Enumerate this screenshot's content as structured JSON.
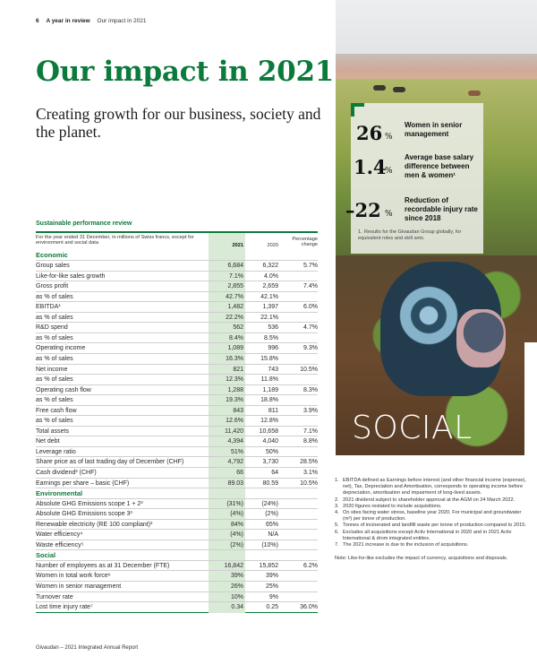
{
  "running_head": {
    "page_number": "6",
    "section": "A year in review",
    "subsection": "Our impact in 2021"
  },
  "title": "Our impact in 2021",
  "subtitle": "Creating growth for our business, society and the planet.",
  "colors": {
    "brand_green": "#0b7a3b",
    "highlight_column": "#d9ead6"
  },
  "highlights": [
    {
      "value": "26",
      "unit": "%",
      "label": "Women in senior management"
    },
    {
      "value": "1.4",
      "unit": "%",
      "label": "Average base salary difference between men & women¹"
    },
    {
      "value": "–22",
      "unit": "%",
      "label": "Reduction of recordable injury rate since 2018"
    }
  ],
  "highlights_note": {
    "num": "1.",
    "text": "Results for the Givaudan Group globally, for equivalent roles and skill sets."
  },
  "photo_caption": "SOCIAL",
  "table": {
    "title": "Sustainable performance review",
    "caption": "For the year ended 31 December, in millions of Swiss francs, except for environment and social data",
    "columns": {
      "y2021": "2021",
      "y2020": "2020",
      "change": "Percentage change"
    },
    "rows": [
      {
        "label": "Economic",
        "category": true
      },
      {
        "label": "Group sales",
        "v2021": "6,684",
        "v2020": "6,322",
        "change": "5.7%"
      },
      {
        "label": "Like-for-like sales growth",
        "v2021": "7.1%",
        "v2020": "4.0%",
        "change": ""
      },
      {
        "label": "Gross profit",
        "v2021": "2,855",
        "v2020": "2,659",
        "change": "7.4%"
      },
      {
        "label": "as % of sales",
        "v2021": "42.7%",
        "v2020": "42.1%",
        "change": ""
      },
      {
        "label": "EBITDA¹",
        "v2021": "1,482",
        "v2020": "1,397",
        "change": "6.0%"
      },
      {
        "label": "as % of sales",
        "v2021": "22.2%",
        "v2020": "22.1%",
        "change": ""
      },
      {
        "label": "R&D spend",
        "v2021": "562",
        "v2020": "536",
        "change": "4.7%"
      },
      {
        "label": "as % of sales",
        "v2021": "8.4%",
        "v2020": "8.5%",
        "change": ""
      },
      {
        "label": "Operating income",
        "v2021": "1,089",
        "v2020": "996",
        "change": "9.3%"
      },
      {
        "label": "as % of sales",
        "v2021": "16.3%",
        "v2020": "15.8%",
        "change": ""
      },
      {
        "label": "Net income",
        "v2021": "821",
        "v2020": "743",
        "change": "10.5%"
      },
      {
        "label": "as % of sales",
        "v2021": "12.3%",
        "v2020": "11.8%",
        "change": ""
      },
      {
        "label": "Operating cash flow",
        "v2021": "1,288",
        "v2020": "1,189",
        "change": "8.3%"
      },
      {
        "label": "as % of sales",
        "v2021": "19.3%",
        "v2020": "18.8%",
        "change": ""
      },
      {
        "label": "Free cash flow",
        "v2021": "843",
        "v2020": "811",
        "change": "3.9%"
      },
      {
        "label": "as % of sales",
        "v2021": "12.6%",
        "v2020": "12.8%",
        "change": ""
      },
      {
        "label": "Total assets",
        "v2021": "11,420",
        "v2020": "10,658",
        "change": "7.1%"
      },
      {
        "label": "Net debt",
        "v2021": "4,394",
        "v2020": "4,040",
        "change": "8.8%"
      },
      {
        "label": "Leverage ratio",
        "v2021": "51%",
        "v2020": "50%",
        "change": ""
      },
      {
        "label": "Share price as of last trading day of December (CHF)",
        "v2021": "4,792",
        "v2020": "3,730",
        "change": "28.5%"
      },
      {
        "label": "Cash dividend² (CHF)",
        "v2021": "66",
        "v2020": "64",
        "change": "3.1%"
      },
      {
        "label": "Earnings per share – basic (CHF)",
        "v2021": "89.03",
        "v2020": "80.59",
        "change": "10.5%"
      },
      {
        "label": "Environmental",
        "category": true
      },
      {
        "label": "Absolute GHG Emissions scope 1 + 2³",
        "v2021": "(31%)",
        "v2020": "(24%)",
        "change": ""
      },
      {
        "label": "Absolute GHG Emissions scope 3³",
        "v2021": "(4%)",
        "v2020": "(2%)",
        "change": ""
      },
      {
        "label": "Renewable electricity (RE 100 compliant)³",
        "v2021": "84%",
        "v2020": "65%",
        "change": ""
      },
      {
        "label": "Water efficiency⁴",
        "v2021": "(4%)",
        "v2020": "N/A",
        "change": ""
      },
      {
        "label": "Waste efficiency⁵",
        "v2021": "(2%)",
        "v2020": "(10%)",
        "change": ""
      },
      {
        "label": "Social",
        "category": true
      },
      {
        "label": "Number of employees as at 31 December (FTE)",
        "v2021": "16,842",
        "v2020": "15,852",
        "change": "6.2%"
      },
      {
        "label": "Women in total work force⁶",
        "v2021": "39%",
        "v2020": "39%",
        "change": ""
      },
      {
        "label": "Women in senior management",
        "v2021": "26%",
        "v2020": "25%",
        "change": ""
      },
      {
        "label": "Turnover rate",
        "v2021": "10%",
        "v2020": "9%",
        "change": ""
      },
      {
        "label": "Lost time injury rate⁷",
        "v2021": "0.34",
        "v2020": "0.25",
        "change": "36.0%"
      }
    ]
  },
  "footnotes": [
    {
      "num": "1.",
      "text": "EBITDA defined as Earnings before interest (and other financial income (expense), net), Tax, Depreciation and Amortisation, corresponds to operating income before depreciation, amortisation and impairment of long-lived assets."
    },
    {
      "num": "2.",
      "text": "2021 dividend subject to shareholder approval at the AGM on 24 March 2022."
    },
    {
      "num": "3.",
      "text": "2020 figures restated to include acquisitions."
    },
    {
      "num": "4.",
      "text": "On sites facing water stress, baseline year 2020. For municipal and groundwater (m³) per tonne of production."
    },
    {
      "num": "5.",
      "text": "Tonnes of incinerated and landfill waste per tonne of production compared to 2015."
    },
    {
      "num": "6.",
      "text": "Excludes all acquisitions except Activ International in 2020 and in 2021 Activ International & drom integrated entities."
    },
    {
      "num": "7.",
      "text": "The 2021 increase is due to the inclusion of acquisitions."
    }
  ],
  "note": "Note: Like-for-like excludes the impact of currency, acquisitions and disposals.",
  "footer": "Givaudan – 2021 Integrated Annual Report"
}
